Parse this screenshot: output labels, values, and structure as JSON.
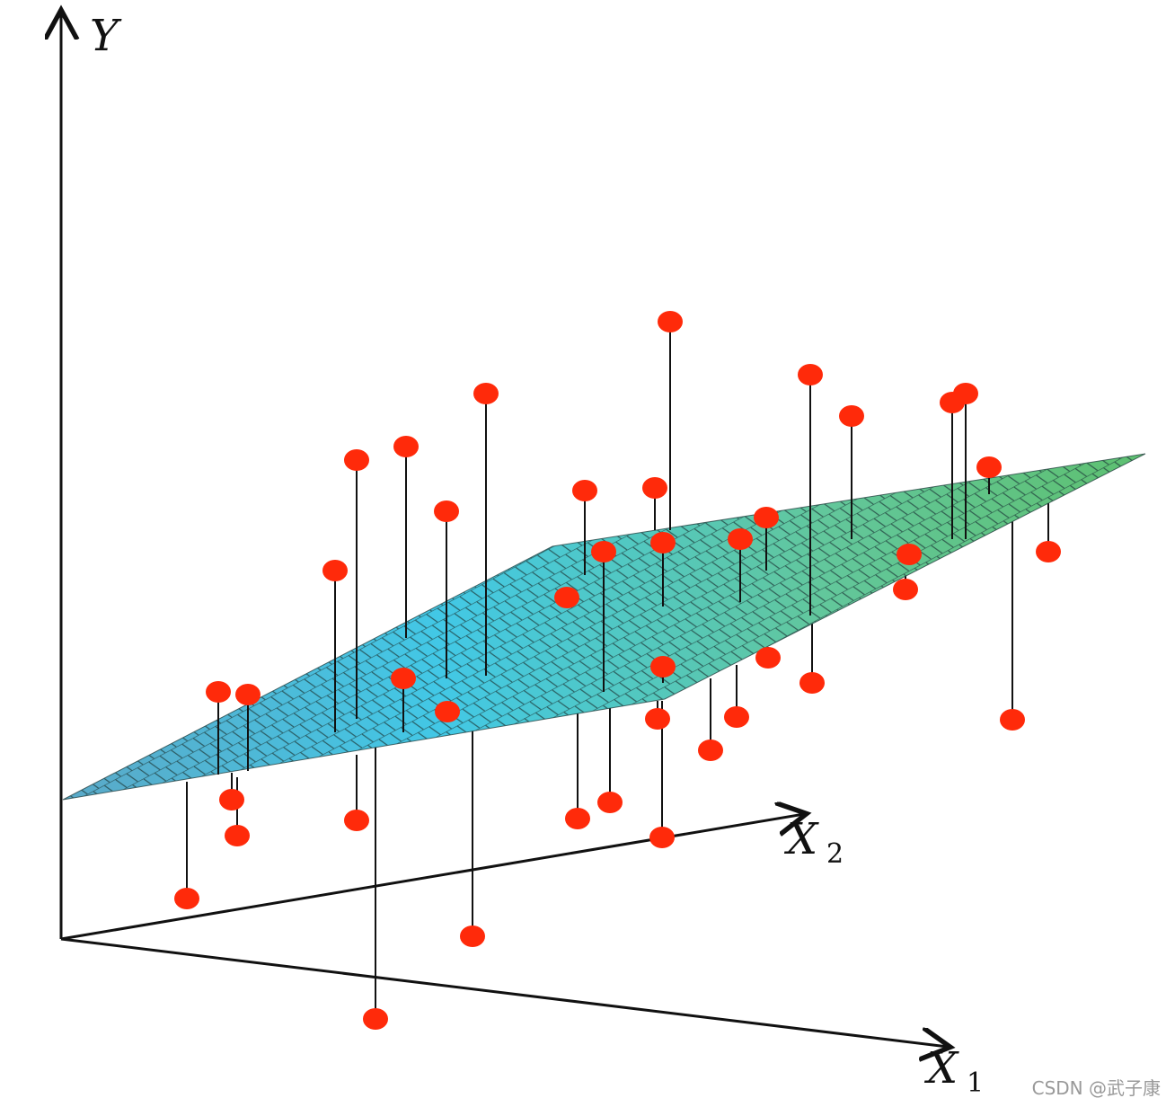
{
  "axes": {
    "y": {
      "letter": "Y"
    },
    "x1": {
      "letter": "X",
      "subscript": "1"
    },
    "x2": {
      "letter": "X",
      "subscript": "2"
    }
  },
  "watermark": "CSDN @武子康"
}
